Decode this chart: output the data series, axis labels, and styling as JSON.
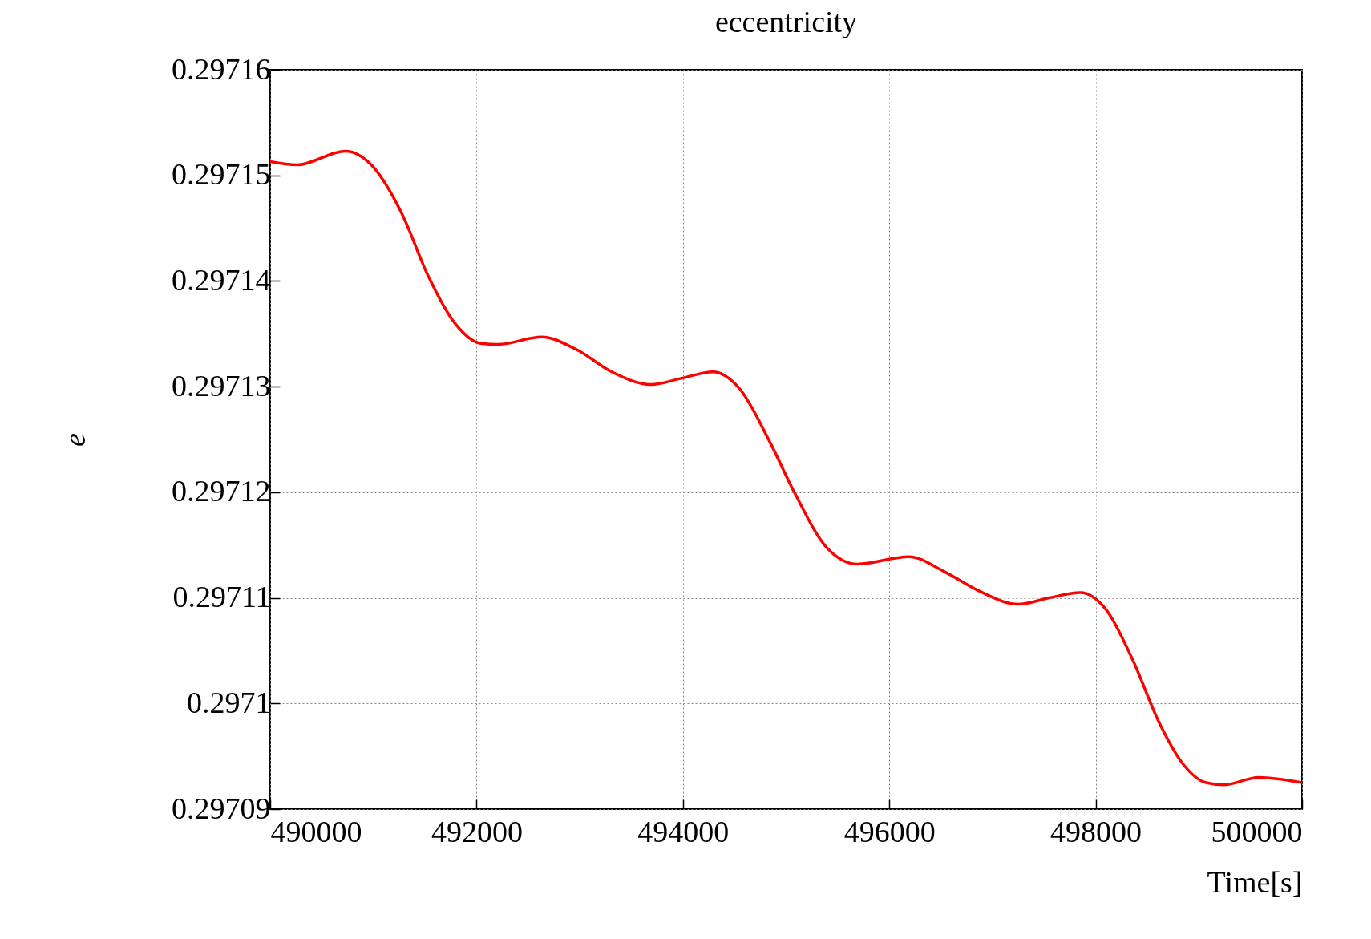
{
  "chart_data": {
    "type": "line",
    "title": "eccentricity",
    "xlabel": "Time[s]",
    "ylabel": "e",
    "xlim": [
      490000,
      500000
    ],
    "xticks": [
      490000,
      492000,
      494000,
      496000,
      498000,
      500000
    ],
    "ylim": [
      0.29709,
      0.29716
    ],
    "yticks": [
      0.29709,
      0.2971,
      0.29711,
      0.29712,
      0.29713,
      0.29714,
      0.29715,
      0.29716
    ],
    "grid": true,
    "marker": "none",
    "line_style": "solid",
    "series": [
      {
        "color": "#ff0000",
        "x": [
          490000,
          490260,
          490730,
          490980,
          491280,
          491530,
          491790,
          492040,
          492210,
          492630,
          492970,
          493310,
          493690,
          493990,
          494290,
          494550,
          494840,
          495090,
          495390,
          495690,
          496190,
          496530,
          496860,
          497250,
          497550,
          497850,
          498100,
          498360,
          498610,
          498860,
          499070,
          499240,
          499580,
          500000
        ],
        "values": [
          0.2971513,
          0.297151,
          0.2971523,
          0.297151,
          0.2971463,
          0.2971405,
          0.297136,
          0.2971341,
          0.297134,
          0.2971347,
          0.2971335,
          0.2971314,
          0.2971302,
          0.2971308,
          0.2971314,
          0.2971298,
          0.2971248,
          0.2971198,
          0.2971148,
          0.2971132,
          0.2971139,
          0.2971125,
          0.2971107,
          0.2971094,
          0.29711,
          0.2971105,
          0.2971089,
          0.2971041,
          0.2970983,
          0.2970941,
          0.2970925,
          0.2970923,
          0.297093,
          0.2970925
        ]
      }
    ]
  }
}
